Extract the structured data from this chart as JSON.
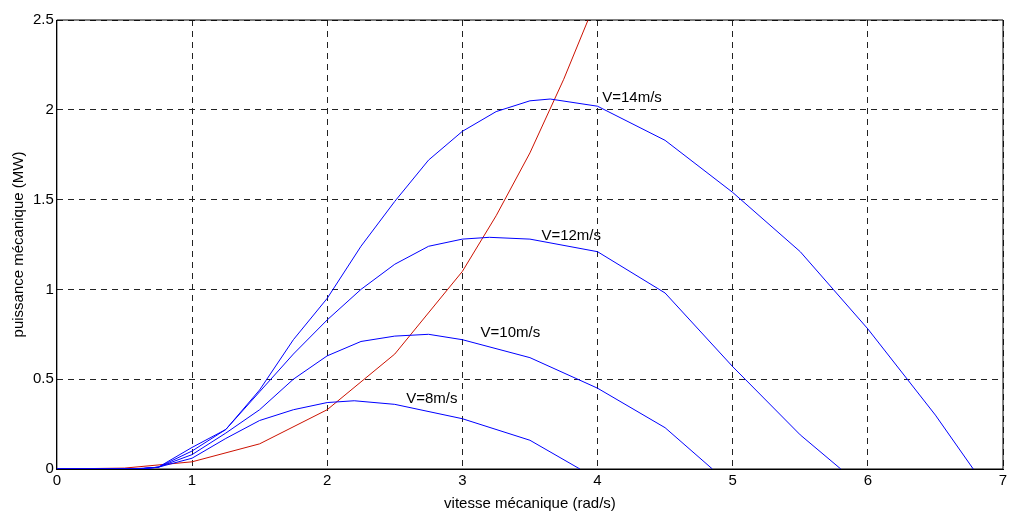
{
  "chart_data": {
    "type": "line",
    "xlabel": "vitesse mécanique (rad/s)",
    "ylabel": "puissance mécanique (MW)",
    "xlim": [
      0,
      7
    ],
    "ylim": [
      0,
      2.5
    ],
    "xticks": [
      0,
      1,
      2,
      3,
      4,
      5,
      6,
      7
    ],
    "yticks": [
      0,
      0.5,
      1,
      1.5,
      2,
      2.5
    ],
    "grid": true,
    "legend": false,
    "marker": "none",
    "line_style": "solid",
    "series": [
      {
        "name": "V=14m/s",
        "color": "#0000ff",
        "x": [
          0,
          0.55,
          0.75,
          1,
          1.25,
          1.5,
          1.75,
          2,
          2.25,
          2.5,
          2.75,
          3,
          3.25,
          3.5,
          3.65,
          4,
          4.5,
          5,
          5.5,
          6,
          6.5,
          6.78
        ],
        "values": [
          0,
          0,
          0.01,
          0.12,
          0.22,
          0.44,
          0.72,
          0.95,
          1.24,
          1.49,
          1.72,
          1.88,
          1.99,
          2.05,
          2.06,
          2.02,
          1.83,
          1.54,
          1.21,
          0.78,
          0.3,
          0
        ]
      },
      {
        "name": "V=12m/s",
        "color": "#0000ff",
        "x": [
          0,
          0.6,
          0.75,
          1,
          1.25,
          1.5,
          1.75,
          2,
          2.25,
          2.5,
          2.75,
          3,
          3.2,
          3.5,
          4,
          4.5,
          5,
          5.5,
          5.8
        ],
        "values": [
          0,
          0,
          0.01,
          0.1,
          0.22,
          0.43,
          0.64,
          0.83,
          1.0,
          1.14,
          1.24,
          1.28,
          1.29,
          1.28,
          1.21,
          0.98,
          0.57,
          0.19,
          0
        ]
      },
      {
        "name": "V=10m/s",
        "color": "#0000ff",
        "x": [
          0,
          0.6,
          0.75,
          1,
          1.25,
          1.5,
          1.75,
          2,
          2.25,
          2.5,
          2.75,
          3,
          3.5,
          4,
          4.5,
          4.85
        ],
        "values": [
          0,
          0,
          0.01,
          0.08,
          0.2,
          0.33,
          0.5,
          0.63,
          0.71,
          0.74,
          0.75,
          0.72,
          0.62,
          0.45,
          0.23,
          0
        ]
      },
      {
        "name": "V=8m/s",
        "color": "#0000ff",
        "x": [
          0,
          0.6,
          0.75,
          1,
          1.25,
          1.5,
          1.75,
          2,
          2.2,
          2.5,
          3,
          3.5,
          3.87
        ],
        "values": [
          0,
          0,
          0.01,
          0.06,
          0.17,
          0.27,
          0.33,
          0.37,
          0.38,
          0.36,
          0.28,
          0.16,
          0
        ]
      },
      {
        "color": "#cc1100",
        "x": [
          0,
          0.5,
          1,
          1.5,
          2,
          2.5,
          3,
          3.25,
          3.5,
          3.75,
          3.93
        ],
        "values": [
          0,
          0.005,
          0.04,
          0.14,
          0.33,
          0.64,
          1.1,
          1.41,
          1.76,
          2.17,
          2.5
        ]
      }
    ]
  }
}
